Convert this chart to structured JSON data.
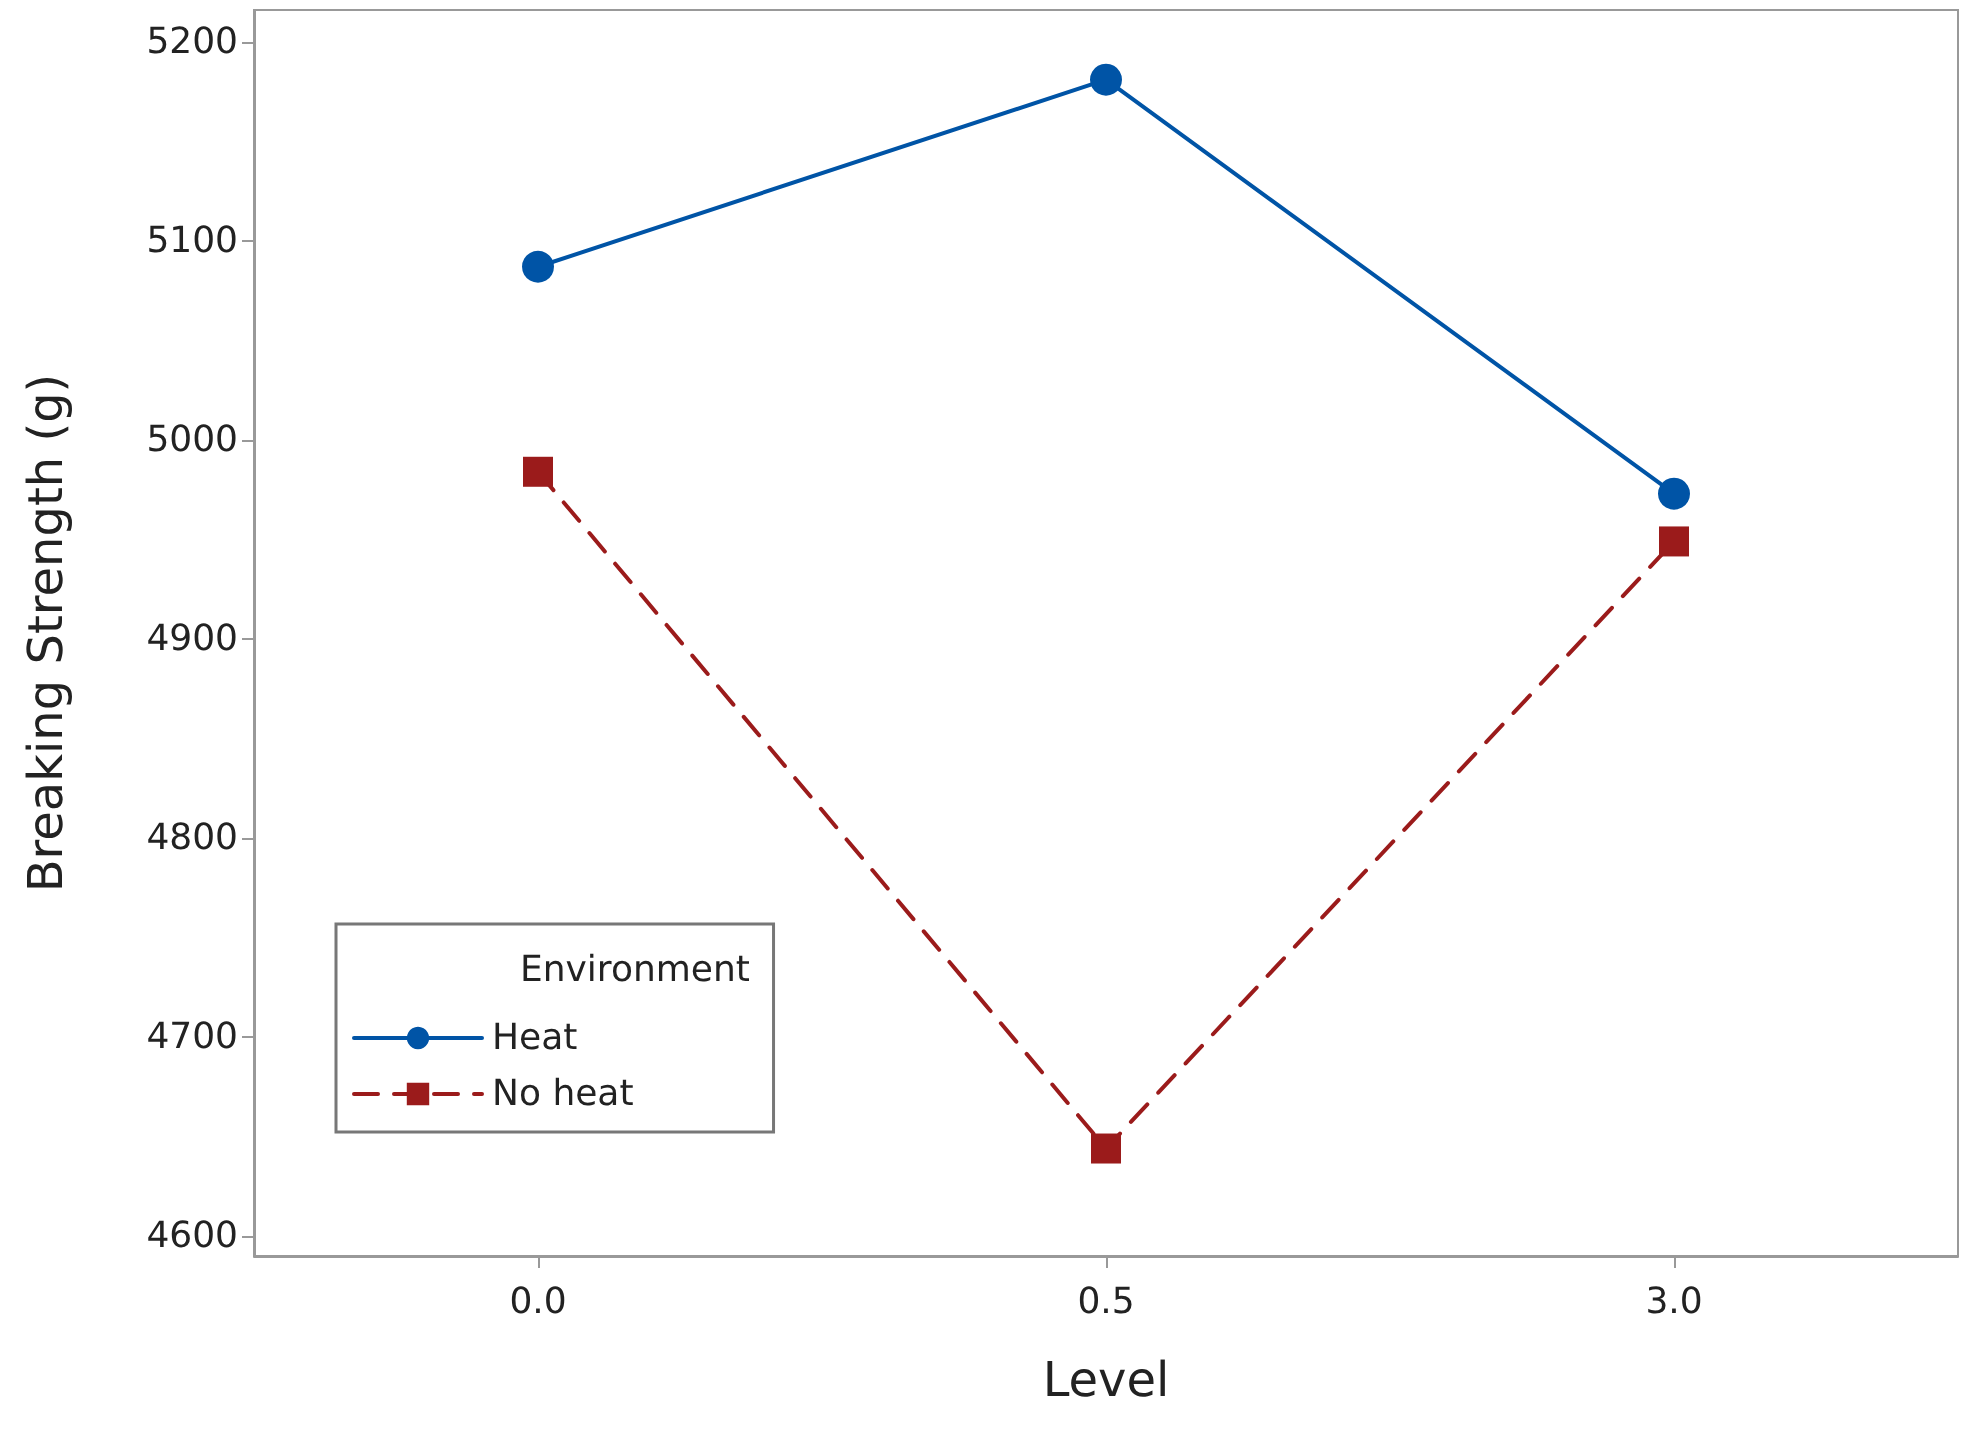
{
  "chart_data": {
    "type": "line",
    "xlabel": "Level",
    "ylabel": "Breaking Strength (g)",
    "legend_title": "Environment",
    "legend": "bottom left",
    "grid": false,
    "categories": [
      "0.0",
      "0.5",
      "3.0"
    ],
    "ylim": [
      4590,
      5216
    ],
    "yticks": [
      4600,
      4700,
      4800,
      4900,
      5000,
      5100,
      5200
    ],
    "series": [
      {
        "name": "Heat",
        "color": "#0054a6",
        "values": [
          5087,
          5181,
          4973
        ],
        "marker": "circle",
        "line_style": "solid"
      },
      {
        "name": "No heat",
        "color": "#9b1b1b",
        "values": [
          4984,
          4644,
          4949
        ],
        "marker": "square",
        "line_style": "dashed"
      }
    ]
  }
}
